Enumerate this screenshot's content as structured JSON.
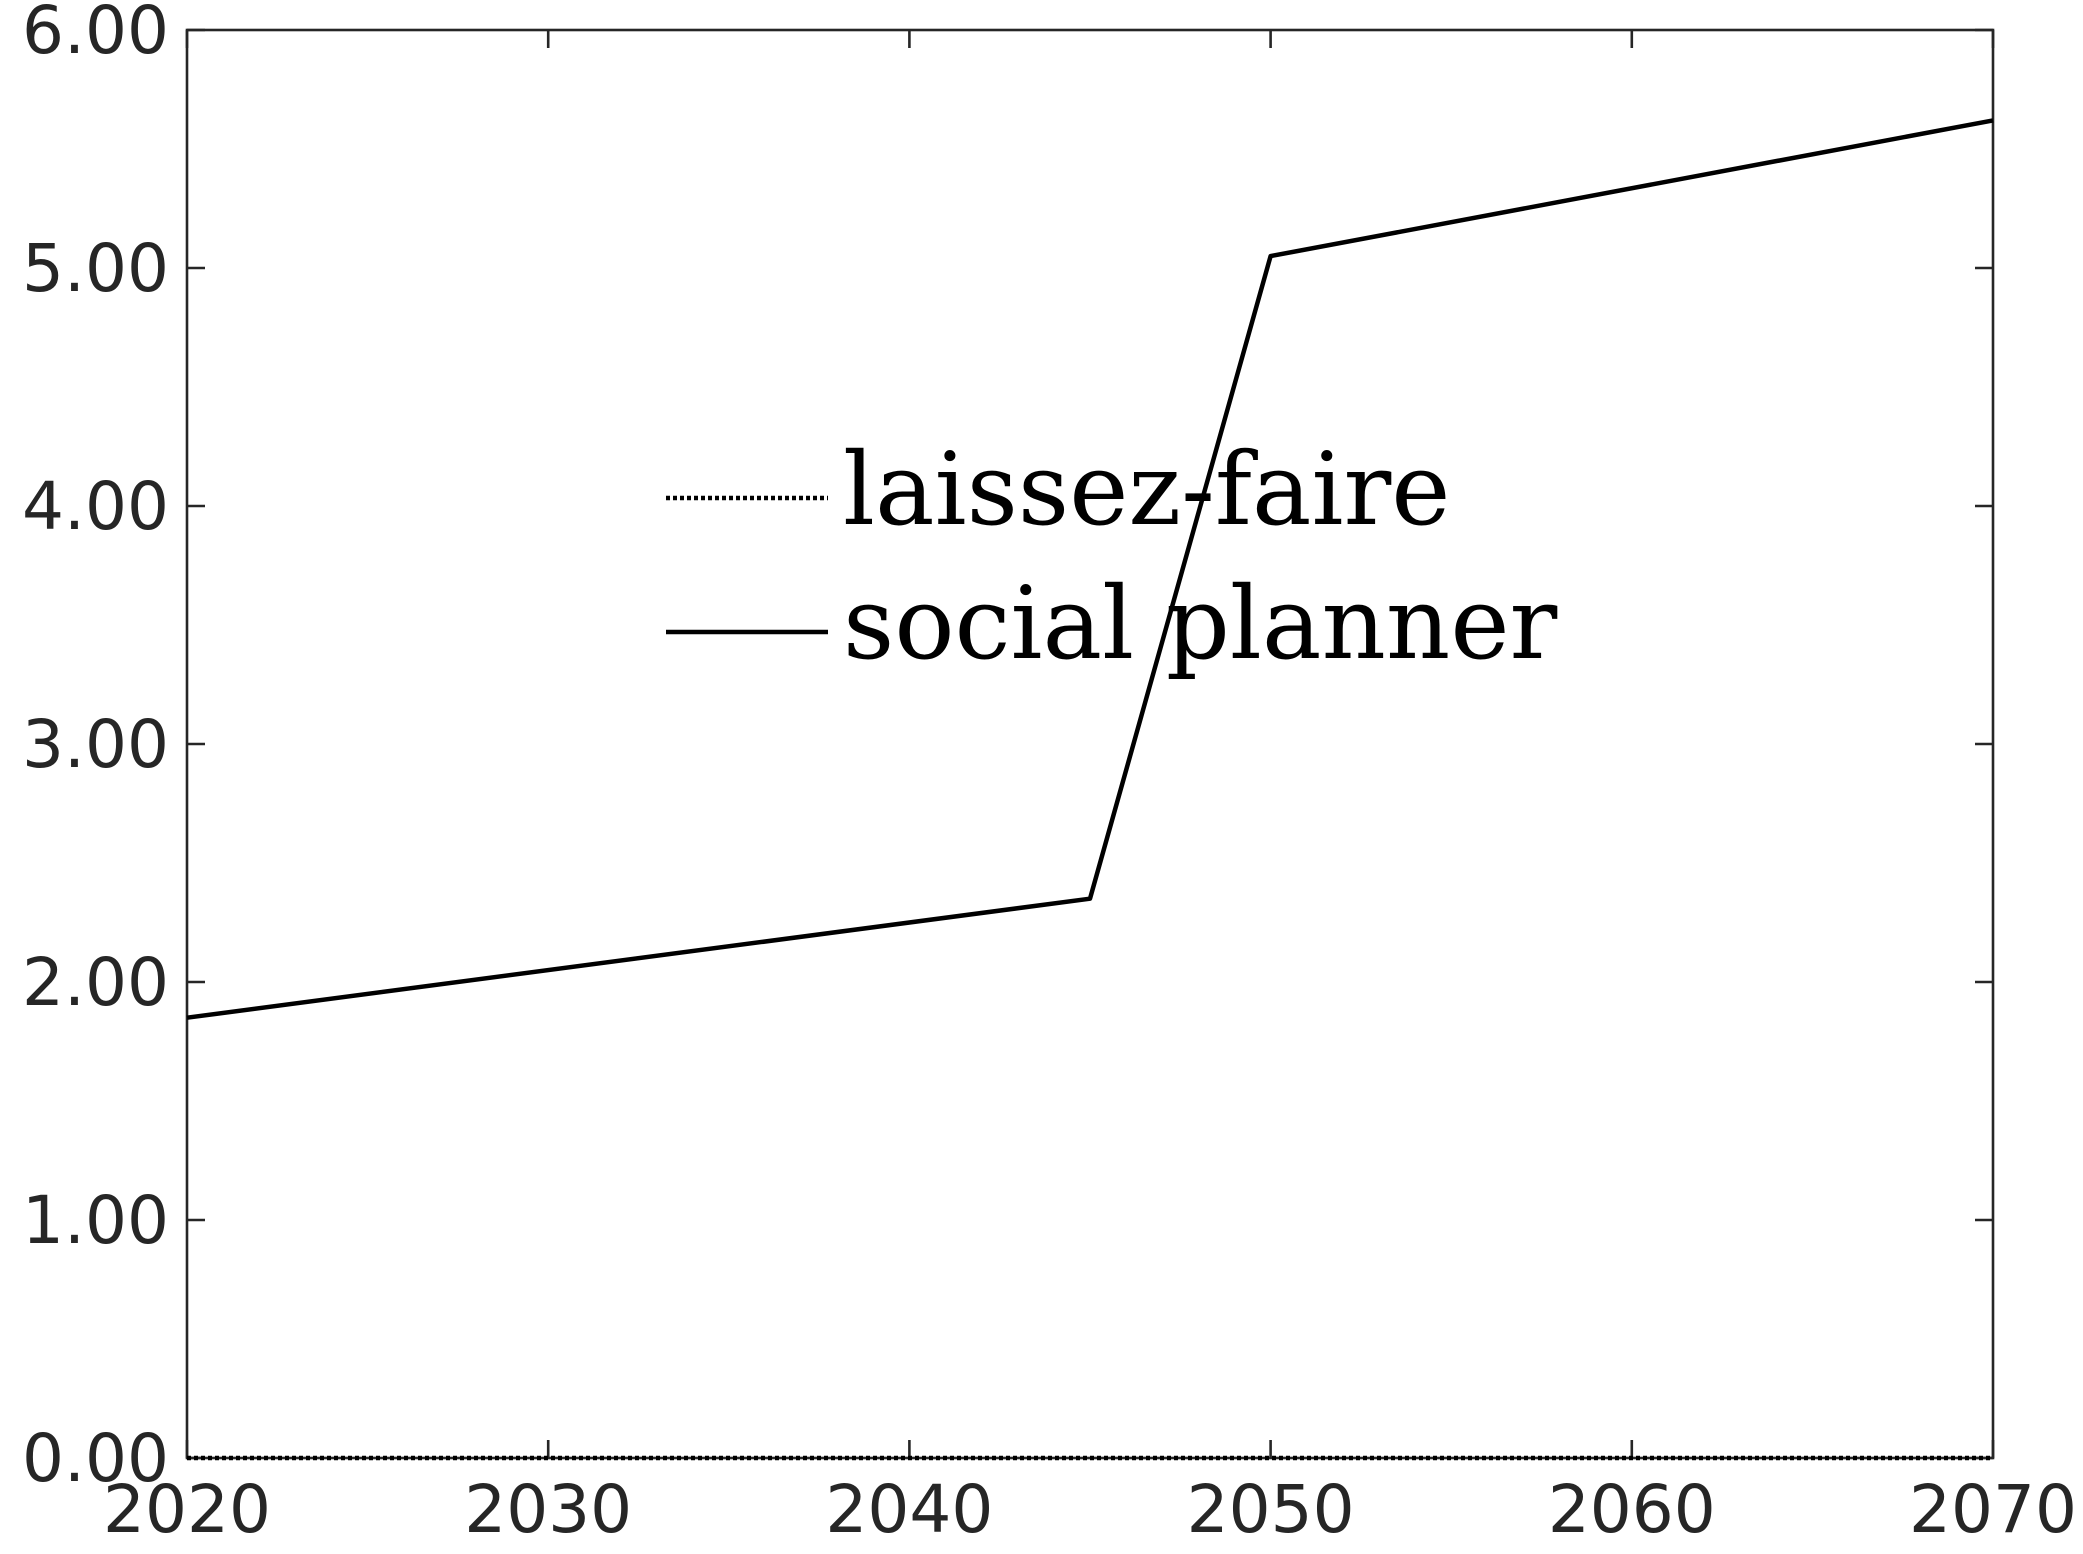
{
  "chart_data": {
    "type": "line",
    "title": "",
    "xlabel": "",
    "ylabel": "",
    "xlim": [
      2020,
      2070
    ],
    "ylim": [
      0,
      6
    ],
    "x_ticks": [
      2020,
      2030,
      2040,
      2050,
      2060,
      2070
    ],
    "y_ticks": [
      0,
      1,
      2,
      3,
      4,
      5,
      6
    ],
    "x_tick_labels": [
      "2020",
      "2030",
      "2040",
      "2050",
      "2060",
      "2070"
    ],
    "y_tick_labels": [
      "0.00",
      "1.00",
      "2.00",
      "3.00",
      "4.00",
      "5.00",
      "6.00"
    ],
    "grid": false,
    "legend_position": "center",
    "series": [
      {
        "name": "laissez-faire",
        "style": "dotted",
        "color": "#000000",
        "x": [
          2020,
          2025,
          2030,
          2035,
          2040,
          2045,
          2050,
          2055,
          2060,
          2065,
          2070
        ],
        "y": [
          0,
          0,
          0,
          0,
          0,
          0,
          0,
          0,
          0,
          0,
          0
        ]
      },
      {
        "name": "social planner",
        "style": "solid",
        "color": "#000000",
        "x": [
          2020,
          2045,
          2050,
          2070
        ],
        "y": [
          1.85,
          2.35,
          5.05,
          5.62
        ]
      }
    ]
  }
}
